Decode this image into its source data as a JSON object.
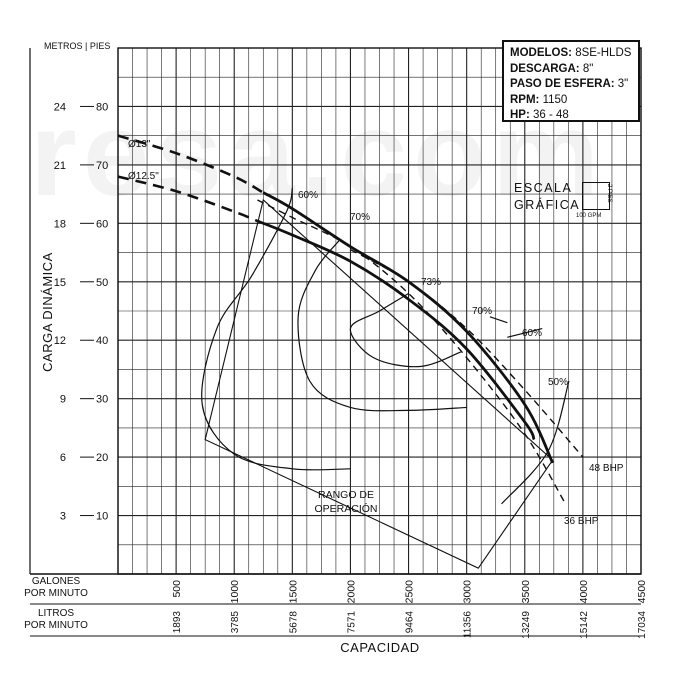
{
  "watermark": "resa.com",
  "info": {
    "modelos_label": "MODELOS:",
    "modelos": "8SE-HLDS",
    "descarga_label": "DESCARGA:",
    "descarga": "8\"",
    "paso_label": "PASO DE ESFERA:",
    "paso": "3\"",
    "rpm_label": "RPM:",
    "rpm": "1150",
    "hp_label": "HP:",
    "hp": "36 - 48"
  },
  "scale": {
    "line1": "ESCALA",
    "line2": "GRÁFICA",
    "gpm": "100 GPM",
    "pies": "2 PIES"
  },
  "chart_data": {
    "type": "line",
    "title": "",
    "xlabel": "CAPACIDAD",
    "ylabel": "CARGA DINÁMICA",
    "xlim": [
      0,
      4500
    ],
    "ylim": [
      0,
      90
    ],
    "x_unit_label": "GALONES POR MINUTO",
    "x2_unit_label": "LITROS POR MINUTO",
    "y_unit_metros": "METROS",
    "y_unit_pies": "PIES",
    "x_ticks": [
      "500",
      "1000",
      "1500",
      "2000",
      "2500",
      "3000",
      "3500",
      "4000",
      "4500"
    ],
    "x_tick_values": [
      500,
      1000,
      1500,
      2000,
      2500,
      3000,
      3500,
      4000,
      4500
    ],
    "x2_ticks": [
      "1893",
      "3785",
      "5678",
      "7571",
      "9464",
      "11356",
      "13249",
      "15142",
      "17034"
    ],
    "y_pies_ticks": [
      "10",
      "20",
      "30",
      "40",
      "50",
      "60",
      "70",
      "80"
    ],
    "y_pies_values": [
      10,
      20,
      30,
      40,
      50,
      60,
      70,
      80
    ],
    "y_metros_ticks": [
      "3",
      "6",
      "9",
      "12",
      "15",
      "18",
      "21",
      "24"
    ],
    "grid": true,
    "series": [
      {
        "name": "Ø13\"",
        "style": "solid-dashed-ends",
        "points": [
          [
            0,
            75
          ],
          [
            500,
            72
          ],
          [
            1000,
            68
          ],
          [
            1500,
            62.5
          ],
          [
            2000,
            56
          ],
          [
            2500,
            50
          ],
          [
            3000,
            41.5
          ],
          [
            3500,
            29
          ],
          [
            3740,
            19
          ]
        ],
        "solid_from": 1250,
        "solid_to": 3740
      },
      {
        "name": "Ø12.5\"",
        "style": "solid-dashed-ends",
        "points": [
          [
            0,
            68
          ],
          [
            500,
            65.5
          ],
          [
            1000,
            62
          ],
          [
            1500,
            58
          ],
          [
            2000,
            53.5
          ],
          [
            2500,
            47
          ],
          [
            3000,
            38.5
          ],
          [
            3500,
            26
          ],
          [
            3580,
            23
          ]
        ],
        "solid_from": 1200,
        "solid_to": 3580
      },
      {
        "name": "48 BHP",
        "style": "dashed",
        "points": [
          [
            2000,
            55.5
          ],
          [
            2500,
            50
          ],
          [
            3000,
            42
          ],
          [
            3500,
            31.5
          ],
          [
            4000,
            20
          ]
        ]
      },
      {
        "name": "36 BHP",
        "style": "dashed",
        "points": [
          [
            1200,
            64
          ],
          [
            1500,
            61
          ],
          [
            2000,
            56
          ],
          [
            2500,
            48
          ],
          [
            3000,
            37
          ],
          [
            3500,
            24
          ],
          [
            3850,
            12
          ]
        ]
      }
    ],
    "efficiency_contours": [
      {
        "label": "60%",
        "points": [
          [
            1500,
            66
          ],
          [
            1450,
            62
          ],
          [
            1150,
            51
          ],
          [
            850,
            42
          ],
          [
            725,
            29
          ],
          [
            1000,
            20.5
          ],
          [
            1500,
            18
          ],
          [
            2000,
            18
          ]
        ]
      },
      {
        "label": "70%",
        "points": [
          [
            1900,
            57
          ],
          [
            1700,
            52
          ],
          [
            1550,
            44
          ],
          [
            1650,
            33
          ],
          [
            2000,
            28.5
          ],
          [
            2500,
            28
          ],
          [
            3000,
            28.5
          ]
        ]
      },
      {
        "label": "73%",
        "points": [
          [
            2500,
            48
          ],
          [
            2250,
            45
          ],
          [
            2000,
            42
          ],
          [
            2200,
            37
          ],
          [
            2600,
            35.5
          ],
          [
            2950,
            38
          ]
        ]
      },
      {
        "label": "70%",
        "points": [
          [
            3350,
            43
          ],
          [
            3200,
            44
          ]
        ]
      },
      {
        "label": "60%",
        "points": [
          [
            3350,
            40.5
          ],
          [
            3650,
            42
          ]
        ]
      },
      {
        "label": "50%",
        "points": [
          [
            3300,
            12
          ],
          [
            3700,
            21
          ],
          [
            3880,
            33
          ]
        ]
      }
    ],
    "operating_range_label": "RANGO DE OPERACIÓN",
    "operating_range": [
      [
        750,
        23
      ],
      [
        1250,
        64
      ],
      [
        3740,
        19.5
      ],
      [
        3100,
        1
      ]
    ],
    "labels": [
      "Ø13\"",
      "Ø12.5\"",
      "60%",
      "70%",
      "73%",
      "70%",
      "60%",
      "50%",
      "48 BHP",
      "36 BHP",
      "RANGO DE OPERACIÓN"
    ]
  }
}
